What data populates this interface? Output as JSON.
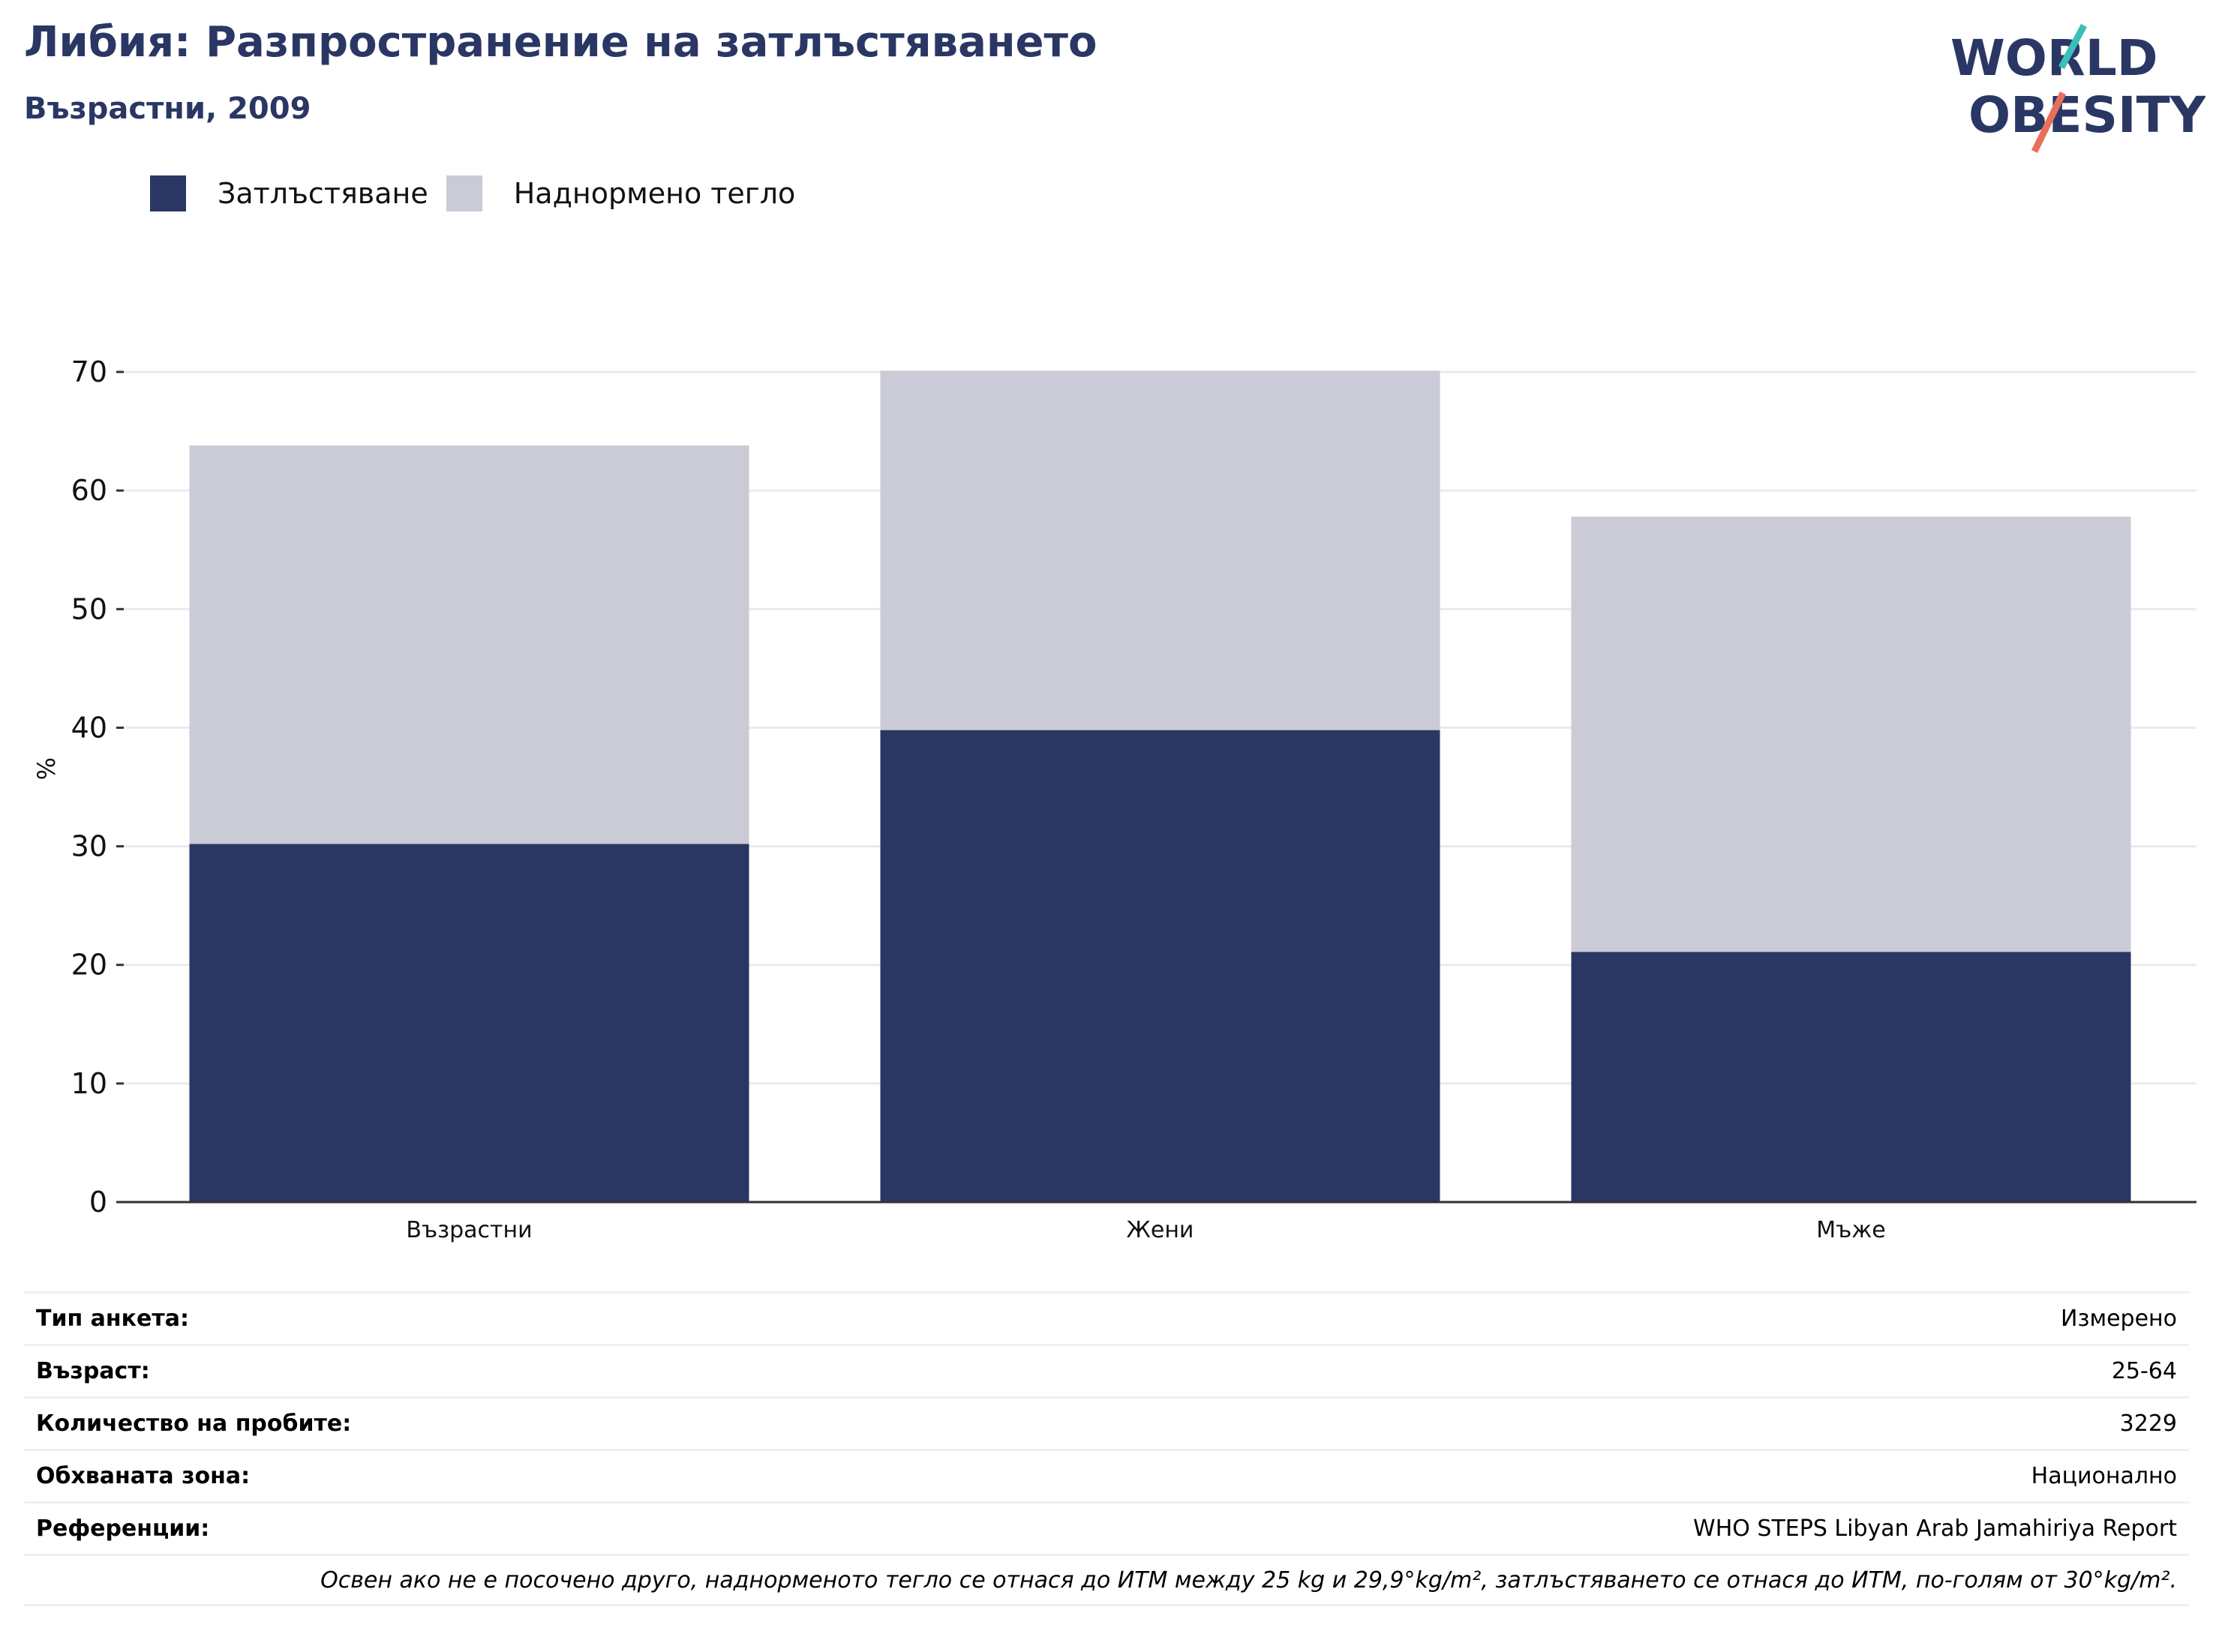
{
  "header": {
    "title": "Либия: Разпространение на затлъстяването",
    "subtitle": "Възрастни, 2009"
  },
  "logo": {
    "line1": "WORLD",
    "line2": "OBESITY"
  },
  "colors": {
    "obesity": "#2b3763",
    "overweight": "#cacbd7",
    "title": "#2a3764",
    "logo_teal": "#3bbfb8",
    "logo_coral": "#e8705a"
  },
  "chart_data": {
    "type": "bar",
    "stacked": true,
    "categories": [
      "Възрастни",
      "Жени",
      "Мъже"
    ],
    "series": [
      {
        "name": "Затлъстяване",
        "values": [
          30.2,
          39.8,
          21.1
        ]
      },
      {
        "name": "Наднормено тегло",
        "values": [
          33.6,
          30.3,
          36.7
        ]
      }
    ],
    "ylabel": "%",
    "ylim": [
      0,
      70
    ],
    "yticks": [
      0,
      10,
      20,
      30,
      40,
      50,
      60,
      70
    ],
    "grid": true,
    "legend": "top-left"
  },
  "meta": {
    "rows": [
      {
        "label": "Тип анкета:",
        "value": "Измерено"
      },
      {
        "label": "Възраст:",
        "value": "25-64"
      },
      {
        "label": "Количество на пробите:",
        "value": "3229"
      },
      {
        "label": "Обхваната зона:",
        "value": "Национално"
      },
      {
        "label": "Референции:",
        "value": "WHO STEPS Libyan Arab Jamahiriya Report"
      }
    ],
    "note": "Освен ако не е посочено друго, наднорменото тегло се отнася до ИТМ между 25 kg и 29,9°kg/m², затлъстяването се отнася до ИТМ, по-голям от 30°kg/m²."
  }
}
